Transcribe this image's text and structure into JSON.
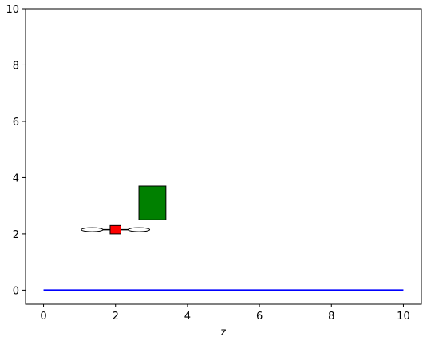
{
  "chart_data": {
    "type": "scatter",
    "title": "",
    "xlabel": "z",
    "ylabel": "",
    "xlim": [
      -0.5,
      10.5
    ],
    "ylim": [
      -0.5,
      10.0
    ],
    "xticks": [
      0,
      2,
      4,
      6,
      8,
      10
    ],
    "yticks": [
      0,
      2,
      4,
      6,
      8,
      10
    ],
    "grid": false,
    "ground_line": {
      "x": [
        0,
        10
      ],
      "y": [
        0,
        0
      ],
      "color": "#0000ff"
    },
    "green_box": {
      "x": [
        2.65,
        3.4
      ],
      "y": [
        2.5,
        3.7
      ],
      "color": "#008000"
    },
    "drone": {
      "x": 2.0,
      "y": 2.15,
      "body_color": "#ff0000",
      "body_half_width": 0.15,
      "body_half_height": 0.15,
      "rotor_centers_x": [
        1.35,
        2.65
      ],
      "rotor_half_width": 0.3,
      "rotor_half_height": 0.07
    }
  }
}
